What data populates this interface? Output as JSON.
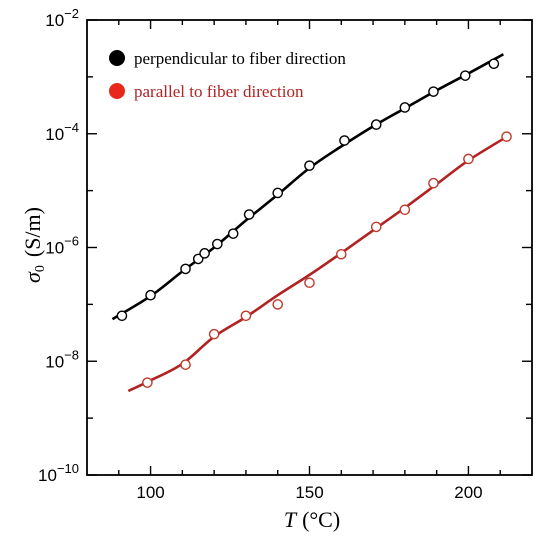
{
  "chart_data": {
    "type": "scatter",
    "title": "",
    "xlabel_symbol": "T",
    "xlabel_unit": "(°C)",
    "ylabel_symbol": "σ",
    "ylabel_subscript": "0",
    "ylabel_unit": "(S/m)",
    "xlim": [
      80,
      220
    ],
    "ylim_log10": [
      -10,
      -2
    ],
    "y_scale": "log",
    "grid": false,
    "x_ticks": [
      {
        "value": 100,
        "label": "100"
      },
      {
        "value": 150,
        "label": "150"
      },
      {
        "value": 200,
        "label": "200"
      }
    ],
    "y_ticks": [
      {
        "exp": -10,
        "base": "10",
        "sup": "−10"
      },
      {
        "exp": -8,
        "base": "10",
        "sup": "−8"
      },
      {
        "exp": -6,
        "base": "10",
        "sup": "−6"
      },
      {
        "exp": -4,
        "base": "10",
        "sup": "−4"
      },
      {
        "exp": -2,
        "base": "10",
        "sup": "−2"
      }
    ],
    "legend_position": "top-left",
    "series": [
      {
        "name": "perpendicular to fiber direction",
        "marker_color": "#000000",
        "line_color": "#000000",
        "points": [
          {
            "x": 91,
            "y": 6.3e-08
          },
          {
            "x": 100,
            "y": 1.45e-07
          },
          {
            "x": 111,
            "y": 4.2e-07
          },
          {
            "x": 115,
            "y": 6.3e-07
          },
          {
            "x": 117,
            "y": 7.9e-07
          },
          {
            "x": 121,
            "y": 1.15e-06
          },
          {
            "x": 126,
            "y": 1.75e-06
          },
          {
            "x": 131,
            "y": 3.8e-06
          },
          {
            "x": 140,
            "y": 9.1e-06
          },
          {
            "x": 150,
            "y": 2.75e-05
          },
          {
            "x": 161,
            "y": 7.6e-05
          },
          {
            "x": 171,
            "y": 0.000145
          },
          {
            "x": 180,
            "y": 0.00029
          },
          {
            "x": 189,
            "y": 0.00055
          },
          {
            "x": 199,
            "y": 0.00105
          },
          {
            "x": 208,
            "y": 0.0017
          }
        ],
        "fit": [
          {
            "x": 88,
            "y": 5.5e-08
          },
          {
            "x": 100,
            "y": 1.4e-07
          },
          {
            "x": 110,
            "y": 3.8e-07
          },
          {
            "x": 120,
            "y": 1e-06
          },
          {
            "x": 130,
            "y": 3e-06
          },
          {
            "x": 140,
            "y": 8.5e-06
          },
          {
            "x": 150,
            "y": 2.5e-05
          },
          {
            "x": 160,
            "y": 6e-05
          },
          {
            "x": 170,
            "y": 0.000135
          },
          {
            "x": 180,
            "y": 0.00028
          },
          {
            "x": 190,
            "y": 0.00058
          },
          {
            "x": 200,
            "y": 0.00115
          },
          {
            "x": 211,
            "y": 0.0025
          }
        ]
      },
      {
        "name": "parallel to fiber direction",
        "marker_color": "#c0392b",
        "line_color": "#b22222",
        "points": [
          {
            "x": 99,
            "y": 4.2e-09
          },
          {
            "x": 111,
            "y": 8.7e-09
          },
          {
            "x": 120,
            "y": 3e-08
          },
          {
            "x": 130,
            "y": 6.3e-08
          },
          {
            "x": 140,
            "y": 1e-07
          },
          {
            "x": 150,
            "y": 2.4e-07
          },
          {
            "x": 160,
            "y": 7.6e-07
          },
          {
            "x": 171,
            "y": 2.3e-06
          },
          {
            "x": 180,
            "y": 4.6e-06
          },
          {
            "x": 189,
            "y": 1.35e-05
          },
          {
            "x": 200,
            "y": 3.6e-05
          },
          {
            "x": 212,
            "y": 8.9e-05
          }
        ],
        "fit": [
          {
            "x": 93,
            "y": 3e-09
          },
          {
            "x": 100,
            "y": 4.6e-09
          },
          {
            "x": 110,
            "y": 9e-09
          },
          {
            "x": 120,
            "y": 2.7e-08
          },
          {
            "x": 130,
            "y": 6e-08
          },
          {
            "x": 140,
            "y": 1.45e-07
          },
          {
            "x": 150,
            "y": 3.3e-07
          },
          {
            "x": 160,
            "y": 8e-07
          },
          {
            "x": 170,
            "y": 2e-06
          },
          {
            "x": 180,
            "y": 5e-06
          },
          {
            "x": 190,
            "y": 1.3e-05
          },
          {
            "x": 200,
            "y": 3.4e-05
          },
          {
            "x": 213,
            "y": 9.5e-05
          }
        ]
      }
    ]
  }
}
